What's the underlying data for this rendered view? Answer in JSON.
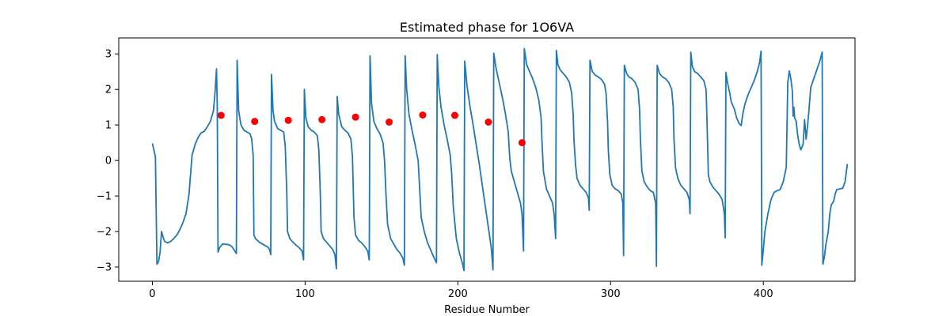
{
  "chart_data": {
    "type": "line",
    "title": "Estimated phase for 1O6VA",
    "xlabel": "Residue Number",
    "ylabel": "",
    "xlim": [
      -22,
      460
    ],
    "ylim": [
      -3.4,
      3.45
    ],
    "x_ticks": [
      0,
      100,
      200,
      300,
      400
    ],
    "y_ticks": [
      -3,
      -2,
      -1,
      0,
      1,
      2,
      3
    ],
    "grid": false,
    "colors": {
      "line": "#1f77b4",
      "markers": "#ff0000",
      "axes": "#000000"
    },
    "series": [
      {
        "kind": "line",
        "points": [
          [
            0,
            0.48
          ],
          [
            1,
            0.3
          ],
          [
            2,
            0.1
          ],
          [
            3,
            -2.92
          ],
          [
            4,
            -2.85
          ],
          [
            5,
            -2.6
          ],
          [
            6,
            -2.0
          ],
          [
            7,
            -2.15
          ],
          [
            8,
            -2.28
          ],
          [
            10,
            -2.32
          ],
          [
            12,
            -2.28
          ],
          [
            14,
            -2.2
          ],
          [
            16,
            -2.1
          ],
          [
            18,
            -1.95
          ],
          [
            20,
            -1.75
          ],
          [
            22,
            -1.5
          ],
          [
            24,
            -0.95
          ],
          [
            25,
            -0.4
          ],
          [
            26,
            0.15
          ],
          [
            28,
            0.45
          ],
          [
            30,
            0.65
          ],
          [
            32,
            0.78
          ],
          [
            34,
            0.82
          ],
          [
            36,
            0.95
          ],
          [
            38,
            1.1
          ],
          [
            40,
            1.4
          ],
          [
            41,
            1.9
          ],
          [
            42,
            2.58
          ],
          [
            42.5,
            1.5
          ],
          [
            43,
            -2.58
          ],
          [
            44,
            -2.45
          ],
          [
            46,
            -2.35
          ],
          [
            50,
            -2.37
          ],
          [
            52,
            -2.42
          ],
          [
            54,
            -2.55
          ],
          [
            55,
            -2.62
          ],
          [
            55.5,
            2.82
          ],
          [
            56.5,
            1.4
          ],
          [
            58,
            1.0
          ],
          [
            60,
            0.85
          ],
          [
            62,
            0.8
          ],
          [
            64,
            0.75
          ],
          [
            65,
            0.6
          ],
          [
            66,
            0.15
          ],
          [
            66.5,
            -2.1
          ],
          [
            67.5,
            -2.2
          ],
          [
            70,
            -2.3
          ],
          [
            72,
            -2.35
          ],
          [
            74,
            -2.4
          ],
          [
            76,
            -2.45
          ],
          [
            77,
            -2.55
          ],
          [
            77.5,
            -2.65
          ],
          [
            78,
            2.42
          ],
          [
            79,
            1.4
          ],
          [
            80,
            1.1
          ],
          [
            82,
            0.9
          ],
          [
            84,
            0.85
          ],
          [
            86,
            0.8
          ],
          [
            87,
            0.4
          ],
          [
            88,
            -0.9
          ],
          [
            88.5,
            -2.0
          ],
          [
            90,
            -2.2
          ],
          [
            92,
            -2.3
          ],
          [
            94,
            -2.38
          ],
          [
            96,
            -2.45
          ],
          [
            98,
            -2.55
          ],
          [
            99,
            -2.8
          ],
          [
            99.5,
            2.0
          ],
          [
            100.5,
            1.2
          ],
          [
            102,
            0.95
          ],
          [
            104,
            0.85
          ],
          [
            106,
            0.8
          ],
          [
            108,
            0.7
          ],
          [
            109,
            0.3
          ],
          [
            110,
            -1.0
          ],
          [
            110.5,
            -2.0
          ],
          [
            112,
            -2.2
          ],
          [
            114,
            -2.3
          ],
          [
            116,
            -2.4
          ],
          [
            118,
            -2.5
          ],
          [
            119.5,
            -2.65
          ],
          [
            120.5,
            -3.05
          ],
          [
            121,
            1.8
          ],
          [
            122,
            1.3
          ],
          [
            124,
            0.95
          ],
          [
            126,
            0.85
          ],
          [
            128,
            0.78
          ],
          [
            130,
            0.6
          ],
          [
            131,
            0.1
          ],
          [
            132,
            -1.6
          ],
          [
            133,
            -2.1
          ],
          [
            135,
            -2.25
          ],
          [
            137,
            -2.32
          ],
          [
            139,
            -2.42
          ],
          [
            141,
            -2.55
          ],
          [
            142,
            -2.8
          ],
          [
            142.5,
            2.95
          ],
          [
            143.5,
            1.6
          ],
          [
            145,
            1.1
          ],
          [
            147,
            0.9
          ],
          [
            149,
            0.75
          ],
          [
            151,
            0.5
          ],
          [
            152,
            0.0
          ],
          [
            153,
            -1.0
          ],
          [
            154,
            -1.8
          ],
          [
            156,
            -2.2
          ],
          [
            158,
            -2.35
          ],
          [
            160,
            -2.5
          ],
          [
            162,
            -2.6
          ],
          [
            164,
            -2.75
          ],
          [
            165,
            -2.95
          ],
          [
            165.5,
            2.95
          ],
          [
            166.5,
            2.0
          ],
          [
            168,
            1.3
          ],
          [
            170,
            0.85
          ],
          [
            172,
            0.45
          ],
          [
            174,
            0.0
          ],
          [
            175,
            -0.8
          ],
          [
            176,
            -1.6
          ],
          [
            178,
            -2.0
          ],
          [
            180,
            -2.3
          ],
          [
            182,
            -2.5
          ],
          [
            184,
            -2.7
          ],
          [
            186,
            -2.88
          ],
          [
            186.5,
            2.98
          ],
          [
            187.5,
            2.1
          ],
          [
            189,
            1.5
          ],
          [
            191,
            1.0
          ],
          [
            193,
            0.6
          ],
          [
            195,
            0.15
          ],
          [
            196,
            -0.4
          ],
          [
            197,
            -1.3
          ],
          [
            199,
            -2.2
          ],
          [
            201,
            -2.6
          ],
          [
            203,
            -2.9
          ],
          [
            204,
            -3.1
          ],
          [
            204.5,
            2.8
          ],
          [
            206,
            2.1
          ],
          [
            208,
            1.5
          ],
          [
            210,
            1.0
          ],
          [
            212,
            0.45
          ],
          [
            214,
            -0.1
          ],
          [
            216,
            -0.7
          ],
          [
            218,
            -1.3
          ],
          [
            220,
            -1.9
          ],
          [
            222,
            -2.5
          ],
          [
            223,
            -3.08
          ],
          [
            223.5,
            3.02
          ],
          [
            225,
            2.6
          ],
          [
            227,
            2.2
          ],
          [
            229,
            1.8
          ],
          [
            231,
            1.35
          ],
          [
            233,
            0.8
          ],
          [
            234,
            0.05
          ],
          [
            235,
            -0.3
          ],
          [
            237,
            -0.6
          ],
          [
            239,
            -0.9
          ],
          [
            241,
            -1.2
          ],
          [
            242,
            -1.5
          ],
          [
            243,
            -2.55
          ],
          [
            243.5,
            3.15
          ],
          [
            245,
            2.7
          ],
          [
            247,
            2.5
          ],
          [
            249,
            2.3
          ],
          [
            251,
            2.05
          ],
          [
            253,
            1.7
          ],
          [
            254.5,
            1.2
          ],
          [
            255,
            0.6
          ],
          [
            256,
            -0.3
          ],
          [
            258,
            -0.8
          ],
          [
            260,
            -1.0
          ],
          [
            262,
            -1.2
          ],
          [
            263,
            -1.5
          ],
          [
            264,
            -2.2
          ],
          [
            264.5,
            3.1
          ],
          [
            265.5,
            2.7
          ],
          [
            267,
            2.55
          ],
          [
            269,
            2.45
          ],
          [
            271,
            2.35
          ],
          [
            273,
            2.2
          ],
          [
            274.5,
            1.9
          ],
          [
            275.5,
            1.3
          ],
          [
            276,
            0.6
          ],
          [
            277,
            -0.1
          ],
          [
            278,
            -0.5
          ],
          [
            280,
            -0.7
          ],
          [
            282,
            -0.8
          ],
          [
            284,
            -0.9
          ],
          [
            285.5,
            -1.05
          ],
          [
            286,
            -1.4
          ],
          [
            286.5,
            2.82
          ],
          [
            288,
            2.5
          ],
          [
            290,
            2.4
          ],
          [
            292,
            2.35
          ],
          [
            294,
            2.28
          ],
          [
            296,
            2.15
          ],
          [
            297,
            1.9
          ],
          [
            298,
            1.1
          ],
          [
            298.5,
            0.3
          ],
          [
            299.5,
            -0.4
          ],
          [
            301,
            -0.7
          ],
          [
            303,
            -0.8
          ],
          [
            305,
            -0.85
          ],
          [
            307,
            -0.95
          ],
          [
            308,
            -1.2
          ],
          [
            308.5,
            -2.68
          ],
          [
            309,
            2.68
          ],
          [
            310.5,
            2.45
          ],
          [
            312,
            2.35
          ],
          [
            314,
            2.3
          ],
          [
            316,
            2.2
          ],
          [
            318,
            2.0
          ],
          [
            319,
            1.4
          ],
          [
            319.5,
            0.6
          ],
          [
            320.5,
            -0.3
          ],
          [
            322,
            -0.6
          ],
          [
            324,
            -0.75
          ],
          [
            326,
            -0.85
          ],
          [
            328,
            -0.9
          ],
          [
            329.5,
            -1.2
          ],
          [
            330,
            -2.98
          ],
          [
            330.5,
            2.68
          ],
          [
            332,
            2.45
          ],
          [
            334,
            2.35
          ],
          [
            336,
            2.3
          ],
          [
            338,
            2.2
          ],
          [
            340,
            2.0
          ],
          [
            341,
            1.5
          ],
          [
            341.5,
            0.6
          ],
          [
            342.5,
            -0.2
          ],
          [
            344,
            -0.5
          ],
          [
            346,
            -0.7
          ],
          [
            348,
            -0.8
          ],
          [
            350,
            -0.9
          ],
          [
            351.5,
            -1.1
          ],
          [
            352,
            -1.5
          ],
          [
            352.5,
            3.05
          ],
          [
            353.5,
            2.65
          ],
          [
            355,
            2.5
          ],
          [
            357,
            2.45
          ],
          [
            359,
            2.35
          ],
          [
            361,
            2.25
          ],
          [
            362.5,
            2.0
          ],
          [
            363,
            1.3
          ],
          [
            364,
            -0.4
          ],
          [
            365,
            -0.6
          ],
          [
            367,
            -0.75
          ],
          [
            369,
            -0.85
          ],
          [
            371,
            -0.95
          ],
          [
            373,
            -1.1
          ],
          [
            374.5,
            -1.5
          ],
          [
            375,
            -2.18
          ],
          [
            375.5,
            2.48
          ],
          [
            376.5,
            2.2
          ],
          [
            378,
            1.9
          ],
          [
            379,
            1.65
          ],
          [
            381,
            1.45
          ],
          [
            382.5,
            1.2
          ],
          [
            384,
            1.05
          ],
          [
            385.5,
            0.98
          ],
          [
            386.5,
            1.3
          ],
          [
            388,
            1.6
          ],
          [
            390,
            1.85
          ],
          [
            392,
            2.05
          ],
          [
            394,
            2.25
          ],
          [
            396,
            2.5
          ],
          [
            397.5,
            2.75
          ],
          [
            398.5,
            3.08
          ],
          [
            399,
            -2.95
          ],
          [
            400,
            -2.5
          ],
          [
            401,
            -2.0
          ],
          [
            403,
            -1.5
          ],
          [
            405,
            -1.1
          ],
          [
            407,
            -0.9
          ],
          [
            409,
            -0.85
          ],
          [
            411,
            -0.82
          ],
          [
            413,
            -0.6
          ],
          [
            415,
            -0.2
          ],
          [
            416,
            2.2
          ],
          [
            417,
            2.52
          ],
          [
            418,
            2.3
          ],
          [
            419,
            1.95
          ],
          [
            419.5,
            1.25
          ],
          [
            420,
            1.5
          ],
          [
            420.5,
            1.2
          ],
          [
            421.5,
            1.1
          ],
          [
            422.5,
            0.7
          ],
          [
            423.5,
            0.45
          ],
          [
            424.5,
            0.3
          ],
          [
            426,
            0.45
          ],
          [
            427,
            1.15
          ],
          [
            428,
            0.6
          ],
          [
            429,
            1.0
          ],
          [
            430,
            1.5
          ],
          [
            431,
            2.05
          ],
          [
            433,
            2.3
          ],
          [
            435,
            2.55
          ],
          [
            437,
            2.8
          ],
          [
            438.5,
            3.05
          ],
          [
            439,
            -2.92
          ],
          [
            440,
            -2.7
          ],
          [
            441,
            -2.35
          ],
          [
            442.5,
            -2.0
          ],
          [
            443.5,
            -1.5
          ],
          [
            444.5,
            -1.25
          ],
          [
            446,
            -1.15
          ],
          [
            447,
            -0.95
          ],
          [
            448,
            -0.82
          ],
          [
            450,
            -0.8
          ],
          [
            452,
            -0.78
          ],
          [
            453.5,
            -0.6
          ],
          [
            455,
            -0.1
          ]
        ]
      },
      {
        "kind": "markers",
        "points": [
          [
            45,
            1.27
          ],
          [
            67,
            1.1
          ],
          [
            89,
            1.13
          ],
          [
            111,
            1.15
          ],
          [
            133,
            1.22
          ],
          [
            155,
            1.08
          ],
          [
            177,
            1.28
          ],
          [
            198,
            1.27
          ],
          [
            220,
            1.08
          ],
          [
            242,
            0.5
          ]
        ]
      }
    ]
  }
}
